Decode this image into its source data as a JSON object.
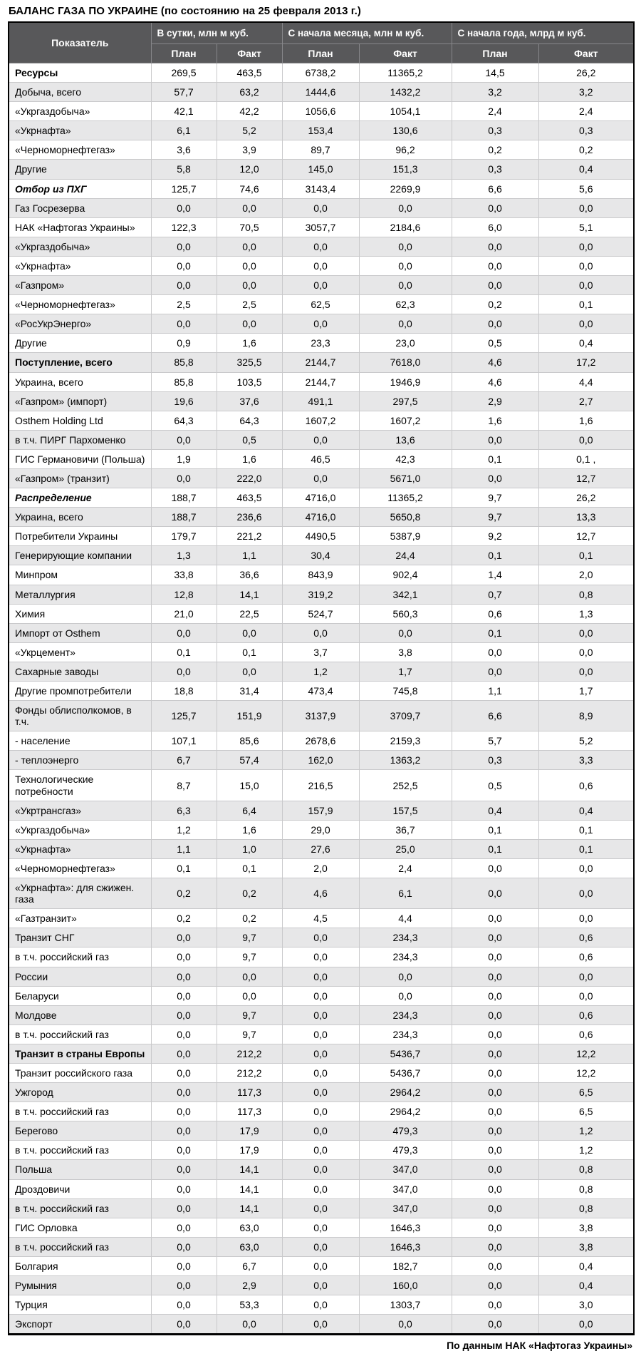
{
  "title": "БАЛАНС ГАЗА ПО УКРАИНЕ (по состоянию на 25 февраля 2013 г.)",
  "source_note": "По данным НАК «Нафтогаз Украины»",
  "colors": {
    "header_bg": "#58585a",
    "header_text": "#ffffff",
    "row_alt_bg": "#e7e7e8",
    "grid_border": "#c9c9cb",
    "outer_border": "#000000"
  },
  "table": {
    "indicator_header": "Показатель",
    "column_groups": [
      {
        "label": "В сутки, млн м куб.",
        "subcolumns": [
          "План",
          "Факт"
        ]
      },
      {
        "label": "С начала месяца, млн м куб.",
        "subcolumns": [
          "План",
          "Факт"
        ]
      },
      {
        "label": "С начала года, млрд м куб.",
        "subcolumns": [
          "План",
          "Факт"
        ]
      }
    ],
    "rows": [
      {
        "label": "Ресурсы",
        "style": "bold",
        "values": [
          "269,5",
          "463,5",
          "6738,2",
          "11365,2",
          "14,5",
          "26,2"
        ]
      },
      {
        "label": "Добыча, всего",
        "style": "normal",
        "values": [
          "57,7",
          "63,2",
          "1444,6",
          "1432,2",
          "3,2",
          "3,2"
        ]
      },
      {
        "label": "«Укргаздобыча»",
        "style": "normal",
        "values": [
          "42,1",
          "42,2",
          "1056,6",
          "1054,1",
          "2,4",
          "2,4"
        ]
      },
      {
        "label": "«Укрнафта»",
        "style": "normal",
        "values": [
          "6,1",
          "5,2",
          "153,4",
          "130,6",
          "0,3",
          "0,3"
        ]
      },
      {
        "label": "«Черноморнефтегаз»",
        "style": "normal",
        "values": [
          "3,6",
          "3,9",
          "89,7",
          "96,2",
          "0,2",
          "0,2"
        ]
      },
      {
        "label": "Другие",
        "style": "normal",
        "values": [
          "5,8",
          "12,0",
          "145,0",
          "151,3",
          "0,3",
          "0,4"
        ]
      },
      {
        "label": "Отбор из ПХГ",
        "style": "bold-italic",
        "values": [
          "125,7",
          "74,6",
          "3143,4",
          "2269,9",
          "6,6",
          "5,6"
        ]
      },
      {
        "label": "Газ Госрезерва",
        "style": "normal",
        "values": [
          "0,0",
          "0,0",
          "0,0",
          "0,0",
          "0,0",
          "0,0"
        ]
      },
      {
        "label": "НАК «Нафтогаз Украины»",
        "style": "normal",
        "values": [
          "122,3",
          "70,5",
          "3057,7",
          "2184,6",
          "6,0",
          "5,1"
        ]
      },
      {
        "label": "«Укргаздобыча»",
        "style": "normal",
        "values": [
          "0,0",
          "0,0",
          "0,0",
          "0,0",
          "0,0",
          "0,0"
        ]
      },
      {
        "label": "«Укрнафта»",
        "style": "normal",
        "values": [
          "0,0",
          "0,0",
          "0,0",
          "0,0",
          "0,0",
          "0,0"
        ]
      },
      {
        "label": "«Газпром»",
        "style": "normal",
        "values": [
          "0,0",
          "0,0",
          "0,0",
          "0,0",
          "0,0",
          "0,0"
        ]
      },
      {
        "label": "«Черноморнефтегаз»",
        "style": "normal",
        "values": [
          "2,5",
          "2,5",
          "62,5",
          "62,3",
          "0,2",
          "0,1"
        ]
      },
      {
        "label": "«РосУкрЭнерго»",
        "style": "normal",
        "values": [
          "0,0",
          "0,0",
          "0,0",
          "0,0",
          "0,0",
          "0,0"
        ]
      },
      {
        "label": "Другие",
        "style": "normal",
        "values": [
          "0,9",
          "1,6",
          "23,3",
          "23,0",
          "0,5",
          "0,4"
        ]
      },
      {
        "label": "Поступление, всего",
        "style": "bold",
        "values": [
          "85,8",
          "325,5",
          "2144,7",
          "7618,0",
          "4,6",
          "17,2"
        ]
      },
      {
        "label": "Украина, всего",
        "style": "normal",
        "values": [
          "85,8",
          "103,5",
          "2144,7",
          "1946,9",
          "4,6",
          "4,4"
        ]
      },
      {
        "label": "«Газпром» (импорт)",
        "style": "normal",
        "values": [
          "19,6",
          "37,6",
          "491,1",
          "297,5",
          "2,9",
          "2,7"
        ]
      },
      {
        "label": "Osthem Holding Ltd",
        "style": "normal",
        "values": [
          "64,3",
          "64,3",
          "1607,2",
          "1607,2",
          "1,6",
          "1,6"
        ]
      },
      {
        "label": "в т.ч. ПИРГ Пархоменко",
        "style": "normal",
        "values": [
          "0,0",
          "0,5",
          "0,0",
          "13,6",
          "0,0",
          "0,0"
        ]
      },
      {
        "label": "ГИС Германовичи (Польша)",
        "style": "normal",
        "values": [
          "1,9",
          "1,6",
          "46,5",
          "42,3",
          "0,1",
          "0,1 ,"
        ]
      },
      {
        "label": "«Газпром» (транзит)",
        "style": "normal",
        "values": [
          "0,0",
          "222,0",
          "0,0",
          "5671,0",
          "0,0",
          "12,7"
        ]
      },
      {
        "label": "Распределение",
        "style": "bold-italic",
        "values": [
          "188,7",
          "463,5",
          "4716,0",
          "11365,2",
          "9,7",
          "26,2"
        ]
      },
      {
        "label": "Украина, всего",
        "style": "normal",
        "values": [
          "188,7",
          "236,6",
          "4716,0",
          "5650,8",
          "9,7",
          "13,3"
        ]
      },
      {
        "label": "Потребители Украины",
        "style": "normal",
        "values": [
          "179,7",
          "221,2",
          "4490,5",
          "5387,9",
          "9,2",
          "12,7"
        ]
      },
      {
        "label": "Генерирующие компании",
        "style": "normal",
        "values": [
          "1,3",
          "1,1",
          "30,4",
          "24,4",
          "0,1",
          "0,1"
        ]
      },
      {
        "label": "Минпром",
        "style": "normal",
        "values": [
          "33,8",
          "36,6",
          "843,9",
          "902,4",
          "1,4",
          "2,0"
        ]
      },
      {
        "label": "Металлургия",
        "style": "normal",
        "values": [
          "12,8",
          "14,1",
          "319,2",
          "342,1",
          "0,7",
          "0,8"
        ]
      },
      {
        "label": "Химия",
        "style": "normal",
        "values": [
          "21,0",
          "22,5",
          "524,7",
          "560,3",
          "0,6",
          "1,3"
        ]
      },
      {
        "label": "Импорт от Osthem",
        "style": "normal",
        "values": [
          "0,0",
          "0,0",
          "0,0",
          "0,0",
          "0,1",
          "0,0"
        ]
      },
      {
        "label": "«Укрцемент»",
        "style": "normal",
        "values": [
          "0,1",
          "0,1",
          "3,7",
          "3,8",
          "0,0",
          "0,0"
        ]
      },
      {
        "label": "Сахарные заводы",
        "style": "normal",
        "values": [
          "0,0",
          "0,0",
          "1,2",
          "1,7",
          "0,0",
          "0,0"
        ]
      },
      {
        "label": "Другие промпотребители",
        "style": "normal",
        "values": [
          "18,8",
          "31,4",
          "473,4",
          "745,8",
          "1,1",
          "1,7"
        ]
      },
      {
        "label": "Фонды облисполкомов, в т.ч.",
        "style": "normal",
        "values": [
          "125,7",
          "151,9",
          "3137,9",
          "3709,7",
          "6,6",
          "8,9"
        ]
      },
      {
        "label": "- население",
        "style": "normal",
        "values": [
          "107,1",
          "85,6",
          "2678,6",
          "2159,3",
          "5,7",
          "5,2"
        ]
      },
      {
        "label": "- теплоэнерго",
        "style": "normal",
        "values": [
          "6,7",
          "57,4",
          "162,0",
          "1363,2",
          "0,3",
          "3,3"
        ]
      },
      {
        "label": "Технологические потребности",
        "style": "normal",
        "values": [
          "8,7",
          "15,0",
          "216,5",
          "252,5",
          "0,5",
          "0,6"
        ]
      },
      {
        "label": "«Укртрансгаз»",
        "style": "normal",
        "values": [
          "6,3",
          "6,4",
          "157,9",
          "157,5",
          "0,4",
          "0,4"
        ]
      },
      {
        "label": "«Укргаздобыча»",
        "style": "normal",
        "values": [
          "1,2",
          "1,6",
          "29,0",
          "36,7",
          "0,1",
          "0,1"
        ]
      },
      {
        "label": "«Укрнафта»",
        "style": "normal",
        "values": [
          "1,1",
          "1,0",
          "27,6",
          "25,0",
          "0,1",
          "0,1"
        ]
      },
      {
        "label": "«Черноморнефтегаз»",
        "style": "normal",
        "values": [
          "0,1",
          "0,1",
          "2,0",
          "2,4",
          "0,0",
          "0,0"
        ]
      },
      {
        "label": "«Укрнафта»: для сжижен. газа",
        "style": "normal",
        "values": [
          "0,2",
          "0,2",
          "4,6",
          "6,1",
          "0,0",
          "0,0"
        ]
      },
      {
        "label": "«Газтранзит»",
        "style": "normal",
        "values": [
          "0,2",
          "0,2",
          "4,5",
          "4,4",
          "0,0",
          "0,0"
        ]
      },
      {
        "label": "Транзит СНГ",
        "style": "normal",
        "values": [
          "0,0",
          "9,7",
          "0,0",
          "234,3",
          "0,0",
          "0,6"
        ]
      },
      {
        "label": "в т.ч. российский газ",
        "style": "normal",
        "values": [
          "0,0",
          "9,7",
          "0,0",
          "234,3",
          "0,0",
          "0,6"
        ]
      },
      {
        "label": "России",
        "style": "normal",
        "values": [
          "0,0",
          "0,0",
          "0,0",
          "0,0",
          "0,0",
          "0,0"
        ]
      },
      {
        "label": "Беларуси",
        "style": "normal",
        "values": [
          "0,0",
          "0,0",
          "0,0",
          "0,0",
          "0,0",
          "0,0"
        ]
      },
      {
        "label": "Молдове",
        "style": "normal",
        "values": [
          "0,0",
          "9,7",
          "0,0",
          "234,3",
          "0,0",
          "0,6"
        ]
      },
      {
        "label": "в т.ч. российский газ",
        "style": "normal",
        "values": [
          "0,0",
          "9,7",
          "0,0",
          "234,3",
          "0,0",
          "0,6"
        ]
      },
      {
        "label": "Транзит в страны Европы",
        "style": "bold",
        "values": [
          "0,0",
          "212,2",
          "0,0",
          "5436,7",
          "0,0",
          "12,2"
        ]
      },
      {
        "label": "Транзит российского газа",
        "style": "normal",
        "values": [
          "0,0",
          "212,2",
          "0,0",
          "5436,7",
          "0,0",
          "12,2"
        ]
      },
      {
        "label": "Ужгород",
        "style": "normal",
        "values": [
          "0,0",
          "117,3",
          "0,0",
          "2964,2",
          "0,0",
          "6,5"
        ]
      },
      {
        "label": "в т.ч. российский газ",
        "style": "normal",
        "values": [
          "0,0",
          "117,3",
          "0,0",
          "2964,2",
          "0,0",
          "6,5"
        ]
      },
      {
        "label": "Берегово",
        "style": "normal",
        "values": [
          "0,0",
          "17,9",
          "0,0",
          "479,3",
          "0,0",
          "1,2"
        ]
      },
      {
        "label": "в т.ч. российский газ",
        "style": "normal",
        "values": [
          "0,0",
          "17,9",
          "0,0",
          "479,3",
          "0,0",
          "1,2"
        ]
      },
      {
        "label": "Польша",
        "style": "normal",
        "values": [
          "0,0",
          "14,1",
          "0,0",
          "347,0",
          "0,0",
          "0,8"
        ]
      },
      {
        "label": "Дроздовичи",
        "style": "normal",
        "values": [
          "0,0",
          "14,1",
          "0,0",
          "347,0",
          "0,0",
          "0,8"
        ]
      },
      {
        "label": "в т.ч. российский газ",
        "style": "normal",
        "values": [
          "0,0",
          "14,1",
          "0,0",
          "347,0",
          "0,0",
          "0,8"
        ]
      },
      {
        "label": "ГИС Орловка",
        "style": "normal",
        "values": [
          "0,0",
          "63,0",
          "0,0",
          "1646,3",
          "0,0",
          "3,8"
        ]
      },
      {
        "label": "в т.ч. российский газ",
        "style": "normal",
        "values": [
          "0,0",
          "63,0",
          "0,0",
          "1646,3",
          "0,0",
          "3,8"
        ]
      },
      {
        "label": "Болгария",
        "style": "normal",
        "values": [
          "0,0",
          "6,7",
          "0,0",
          "182,7",
          "0,0",
          "0,4"
        ]
      },
      {
        "label": "Румыния",
        "style": "normal",
        "values": [
          "0,0",
          "2,9",
          "0,0",
          "160,0",
          "0,0",
          "0,4"
        ]
      },
      {
        "label": "Турция",
        "style": "normal",
        "values": [
          "0,0",
          "53,3",
          "0,0",
          "1303,7",
          "0,0",
          "3,0"
        ]
      },
      {
        "label": "Экспорт",
        "style": "normal",
        "values": [
          "0,0",
          "0,0",
          "0,0",
          "0,0",
          "0,0",
          "0,0"
        ]
      }
    ]
  }
}
